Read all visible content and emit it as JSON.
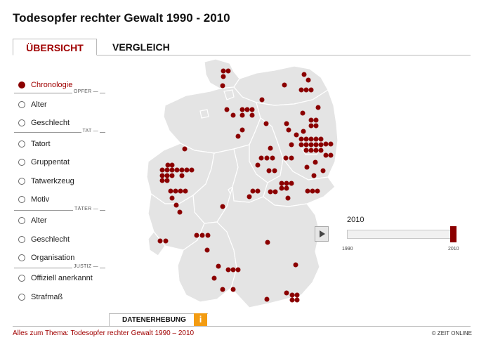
{
  "header": {
    "title": "Todesopfer rechter Gewalt 1990 - 2010"
  },
  "tabs": {
    "overview": "ÜBERSICHT",
    "compare": "VERGLEICH"
  },
  "menu": {
    "chronologie": "Chronologie",
    "group_opfer": "OPFER —",
    "opfer_alter": "Alter",
    "opfer_geschlecht": "Geschlecht",
    "group_tat": "TAT —",
    "tatort": "Tatort",
    "gruppentat": "Gruppentat",
    "tatwerkzeug": "Tatwerkzeug",
    "motiv": "Motiv",
    "group_taeter": "TÄTER —",
    "taeter_alter": "Alter",
    "taeter_geschlecht": "Geschlecht",
    "organisation": "Organisation",
    "group_justiz": "JUSTIZ —",
    "offiziell": "Offiziell anerkannt",
    "strafmass": "Strafmaß"
  },
  "timeline": {
    "current_year": "2010",
    "min_year": "1990",
    "max_year": "2010",
    "value": 1.0
  },
  "footer": {
    "datenerhebung": "DATENERHEBUNG",
    "info_icon": "i",
    "link": "Alles zum Thema: Todesopfer rechter Gewalt 1990 – 2010",
    "copyright": "© ZEIT ONLINE"
  },
  "colors": {
    "accent": "#8b0000",
    "link": "#a00000",
    "map_fill": "#e4e4e4",
    "map_border": "#ffffff",
    "info": "#f39c12"
  }
}
